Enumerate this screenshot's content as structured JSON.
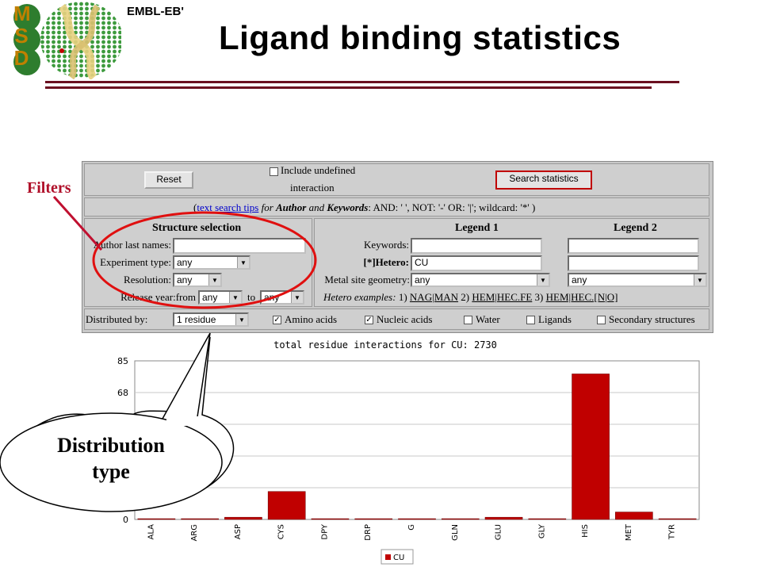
{
  "header": {
    "logo_letters": [
      "M",
      "S",
      "D"
    ],
    "org": "EMBL-EB'",
    "title": "Ligand binding statistics"
  },
  "controls": {
    "reset_label": "Reset",
    "include_undefined_label_1": "Include undefined",
    "include_undefined_label_2": "interaction",
    "include_undefined_checked": false,
    "search_label": "Search statistics"
  },
  "tips": {
    "open": "(",
    "link": "text search tips",
    "for": " for ",
    "author": "Author",
    "and1": " and ",
    "keywords": "Keywords",
    "rest": ": AND: ' ', NOT: '-' OR: '|'; wildcard: '*' )"
  },
  "structure": {
    "heading": "Structure selection",
    "author_label": "Author last names:",
    "author_value": "",
    "experiment_label": "Experiment type:",
    "experiment_value": "any",
    "resolution_label": "Resolution:",
    "resolution_value": "any",
    "year_label": "Release year:from",
    "year_from": "any",
    "year_to_label": "to",
    "year_to": "any"
  },
  "legend": {
    "heading1": "Legend 1",
    "heading2": "Legend 2",
    "keywords_label": "Keywords:",
    "keywords1": "",
    "keywords2": "",
    "hetero_label": "[*]Hetero:",
    "hetero1": "CU",
    "hetero2": "",
    "metal_label": "Metal site geometry:",
    "metal1": "any",
    "metal2": "any",
    "examples_label": "Hetero examples:",
    "ex1_num": " 1) ",
    "ex1": "NAG|MAN",
    "ex2_num": " 2) ",
    "ex2": "HEM|HEC.FE",
    "ex3_num": " 3) ",
    "ex3": "HEM|HEC.[N|O]"
  },
  "distribution": {
    "label": "Distributed by:",
    "value": "1 residue",
    "options": [
      {
        "label": "Amino acids",
        "checked": true
      },
      {
        "label": "Nucleic acids",
        "checked": true
      },
      {
        "label": "Water",
        "checked": false
      },
      {
        "label": "Ligands",
        "checked": false
      },
      {
        "label": "Secondary structures",
        "checked": false
      }
    ]
  },
  "annotations": {
    "filters": "Filters",
    "distribution_line1": "Distribution",
    "distribution_line2": "type",
    "color": "#b0102a"
  },
  "chart_data": {
    "type": "bar",
    "title": "total residue interactions  for CU: 2730",
    "categories": [
      "ALA",
      "ARG",
      "ASP",
      "CYS",
      "DPY",
      "DRP",
      "G",
      "GLN",
      "GLU",
      "GLY",
      "HIS",
      "MET",
      "TYR"
    ],
    "series": [
      {
        "name": "CU",
        "color": "#c00000",
        "values": [
          0.2,
          0.2,
          1.2,
          15,
          0.2,
          0.2,
          0.2,
          0.2,
          1.2,
          0.3,
          78,
          4,
          0.3
        ]
      }
    ],
    "yticks": [
      0,
      68,
      85
    ],
    "ylim": [
      0,
      85
    ],
    "grid": true,
    "legend_position": "bottom"
  }
}
